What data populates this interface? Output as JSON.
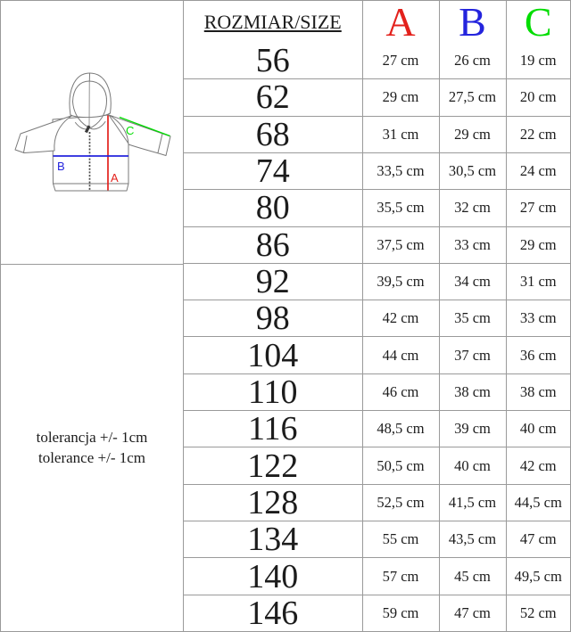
{
  "colors": {
    "a": "#e3211c",
    "b": "#2424dd",
    "c": "#00dd00",
    "grid": "#9a9a9a"
  },
  "diagram": {
    "labels": {
      "a": "A",
      "b": "B",
      "c": "C"
    },
    "tolerance_line1": "tolerancja +/- 1cm",
    "tolerance_line2": "tolerance +/- 1cm"
  },
  "table": {
    "header": {
      "size_label": "ROZMIAR/SIZE",
      "col_a": "A",
      "col_b": "B",
      "col_c": "C"
    },
    "rows": [
      {
        "size": "56",
        "a": "27 cm",
        "b": "26 cm",
        "c": "19 cm"
      },
      {
        "size": "62",
        "a": "29 cm",
        "b": "27,5 cm",
        "c": "20 cm"
      },
      {
        "size": "68",
        "a": "31 cm",
        "b": "29 cm",
        "c": "22 cm"
      },
      {
        "size": "74",
        "a": "33,5 cm",
        "b": "30,5 cm",
        "c": "24 cm"
      },
      {
        "size": "80",
        "a": "35,5 cm",
        "b": "32 cm",
        "c": "27 cm"
      },
      {
        "size": "86",
        "a": "37,5 cm",
        "b": "33 cm",
        "c": "29 cm"
      },
      {
        "size": "92",
        "a": "39,5 cm",
        "b": "34 cm",
        "c": "31 cm"
      },
      {
        "size": "98",
        "a": "42 cm",
        "b": "35 cm",
        "c": "33 cm"
      },
      {
        "size": "104",
        "a": "44 cm",
        "b": "37 cm",
        "c": "36 cm"
      },
      {
        "size": "110",
        "a": "46 cm",
        "b": "38 cm",
        "c": "38 cm"
      },
      {
        "size": "116",
        "a": "48,5 cm",
        "b": "39 cm",
        "c": "40 cm"
      },
      {
        "size": "122",
        "a": "50,5 cm",
        "b": "40 cm",
        "c": "42 cm"
      },
      {
        "size": "128",
        "a": "52,5 cm",
        "b": "41,5 cm",
        "c": "44,5 cm"
      },
      {
        "size": "134",
        "a": "55 cm",
        "b": "43,5 cm",
        "c": "47 cm"
      },
      {
        "size": "140",
        "a": "57 cm",
        "b": "45 cm",
        "c": "49,5 cm"
      },
      {
        "size": "146",
        "a": "59 cm",
        "b": "47 cm",
        "c": "52 cm"
      }
    ]
  },
  "chart_data": {
    "type": "table",
    "title": "ROZMIAR/SIZE",
    "columns": [
      "ROZMIAR/SIZE",
      "A",
      "B",
      "C"
    ],
    "units": "cm",
    "tolerance": "+/- 1cm",
    "rows": [
      [
        56,
        27,
        26,
        19
      ],
      [
        62,
        29,
        27.5,
        20
      ],
      [
        68,
        31,
        29,
        22
      ],
      [
        74,
        33.5,
        30.5,
        24
      ],
      [
        80,
        35.5,
        32,
        27
      ],
      [
        86,
        37.5,
        33,
        29
      ],
      [
        92,
        39.5,
        34,
        31
      ],
      [
        98,
        42,
        35,
        33
      ],
      [
        104,
        44,
        37,
        36
      ],
      [
        110,
        46,
        38,
        38
      ],
      [
        116,
        48.5,
        39,
        40
      ],
      [
        122,
        50.5,
        40,
        42
      ],
      [
        128,
        52.5,
        41.5,
        44.5
      ],
      [
        134,
        55,
        43.5,
        47
      ],
      [
        140,
        57,
        45,
        49.5
      ],
      [
        146,
        59,
        47,
        52
      ]
    ],
    "legend": {
      "A": "red vertical line on jacket (length)",
      "B": "blue horizontal line on jacket (width)",
      "C": "green diagonal line on jacket (sleeve)"
    }
  }
}
